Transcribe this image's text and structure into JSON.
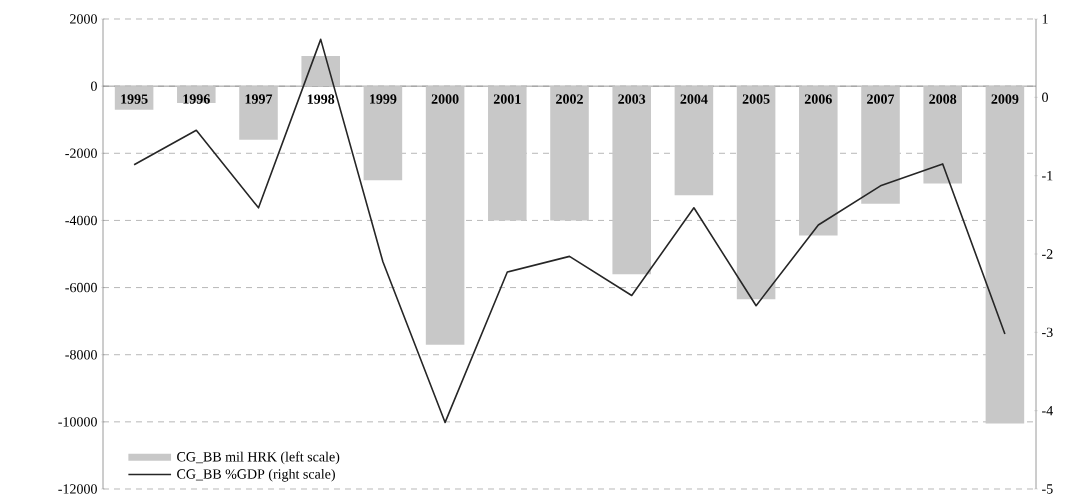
{
  "chart_data": {
    "type": "bar",
    "categories": [
      "1995",
      "1996",
      "1997",
      "1998",
      "1999",
      "2000",
      "2001",
      "2002",
      "2003",
      "2004",
      "2005",
      "2006",
      "2007",
      "2008",
      "2009"
    ],
    "series": [
      {
        "name": "CG_BB mil HRK (left scale)",
        "color": "#c8c8c8",
        "values": [
          -700,
          -500,
          -1600,
          900,
          -2800,
          -7700,
          -4000,
          -4000,
          -5600,
          -3250,
          -6350,
          -4450,
          -3500,
          -2900,
          -10050
        ]
      },
      {
        "name": "CG_BB %GDP (right scale)",
        "type": "line",
        "axis": "y2",
        "color": "#262626",
        "values": [
          -0.86,
          -0.42,
          -1.41,
          0.74,
          -2.1,
          -4.15,
          -2.23,
          -2.03,
          -2.53,
          -1.41,
          -2.66,
          -1.63,
          -1.13,
          -0.85,
          -3.02
        ]
      }
    ],
    "ylim": [
      -12000,
      2000
    ],
    "yticks": [
      -12000,
      -10000,
      -8000,
      -6000,
      -4000,
      -2000,
      0,
      2000
    ],
    "y2lim": [
      -5,
      1
    ],
    "y2ticks": [
      -5,
      -4,
      -3,
      -2,
      -1,
      0,
      1
    ],
    "grid": true,
    "legend": "bottom left"
  }
}
